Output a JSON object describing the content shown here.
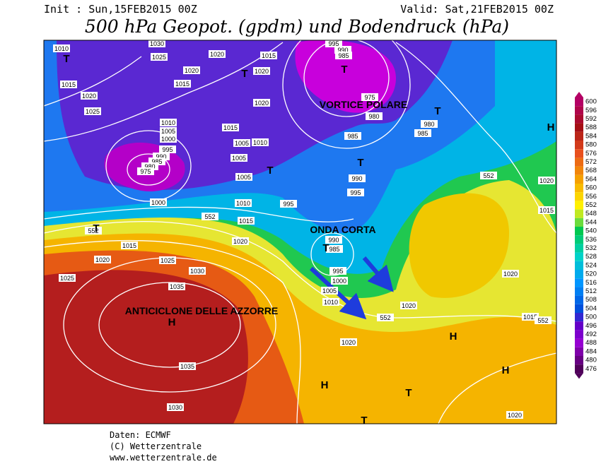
{
  "header": {
    "init": "Init : Sun,15FEB2015 00Z",
    "valid": "Valid: Sat,21FEB2015 00Z",
    "title": "500 hPa Geopot. (gpdm) und Bodendruck (hPa)"
  },
  "map": {
    "annotations": [
      "VORTICE POLARE",
      "ONDA CORTA",
      "ANTICICLONE DELLE AZZORRE"
    ],
    "pressure_centers": [
      "T",
      "T",
      "T",
      "T",
      "H",
      "T",
      "T",
      "T",
      "T",
      "H",
      "H",
      "H",
      "H",
      "T",
      "T"
    ],
    "contour_labels": [
      "1010",
      "1030",
      "1025",
      "1020",
      "1015",
      "1020",
      "1020",
      "1015",
      "1015",
      "1020",
      "1025",
      "1020",
      "1010",
      "1005",
      "1000",
      "995",
      "990",
      "985",
      "980",
      "975",
      "1015",
      "1005",
      "1010",
      "1005",
      "1000",
      "1005",
      "1010",
      "1015",
      "552",
      "552",
      "1015",
      "1020",
      "1020",
      "1025",
      "1030",
      "1025",
      "1035",
      "1035",
      "1030",
      "995",
      "990",
      "985",
      "975",
      "980",
      "980",
      "985",
      "985",
      "990",
      "995",
      "995",
      "990",
      "985",
      "995",
      "1000",
      "1005",
      "1010",
      "552",
      "1020",
      "1020",
      "552",
      "1020",
      "1015",
      "1020",
      "1015",
      "552",
      "1020"
    ]
  },
  "colorbar": {
    "ticks": [
      600,
      596,
      592,
      588,
      584,
      580,
      576,
      572,
      568,
      564,
      560,
      556,
      552,
      548,
      544,
      540,
      536,
      532,
      528,
      524,
      520,
      516,
      512,
      508,
      504,
      500,
      496,
      492,
      488,
      484,
      480,
      476
    ]
  },
  "footer": [
    "Daten: ECMWF",
    "(C) Wetterzentrale",
    "www.wetterzentrale.de"
  ]
}
